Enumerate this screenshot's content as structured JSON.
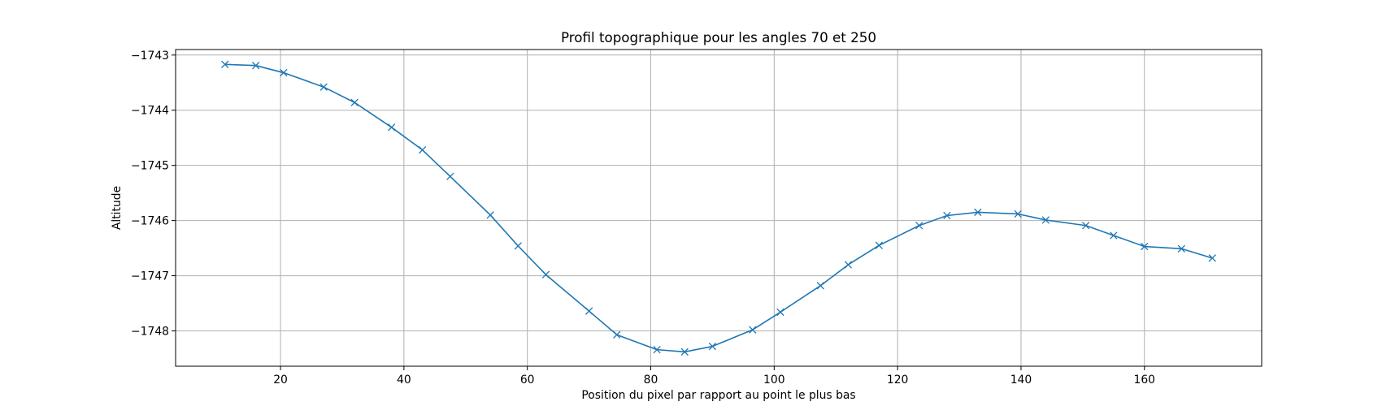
{
  "chart_data": {
    "type": "line",
    "title": "Profil topographique pour les angles 70 et 250",
    "xlabel": "Position du pixel par rapport au point le plus bas",
    "ylabel": "Altitude",
    "xlim": [
      3,
      179
    ],
    "ylim": [
      -1748.64,
      -1742.9
    ],
    "xticks": [
      20,
      40,
      60,
      80,
      100,
      120,
      140,
      160
    ],
    "yticks": [
      -1743,
      -1744,
      -1745,
      -1746,
      -1747,
      -1748
    ],
    "grid": true,
    "legend": "none",
    "series": [
      {
        "color": "#1f77b4",
        "marker": "x",
        "x": [
          11,
          16,
          20.5,
          27,
          32,
          38,
          43,
          47.5,
          54,
          58.5,
          63,
          70,
          74.5,
          81,
          85.5,
          90,
          96.5,
          101,
          107.5,
          112,
          117,
          123.5,
          128,
          133,
          139.5,
          144,
          150.5,
          155,
          160,
          166,
          171
        ],
        "y": [
          -1743.17,
          -1743.19,
          -1743.32,
          -1743.58,
          -1743.86,
          -1744.31,
          -1744.72,
          -1745.2,
          -1745.9,
          -1746.46,
          -1746.98,
          -1747.64,
          -1748.07,
          -1748.34,
          -1748.38,
          -1748.28,
          -1747.98,
          -1747.66,
          -1747.18,
          -1746.8,
          -1746.45,
          -1746.09,
          -1745.91,
          -1745.85,
          -1745.88,
          -1745.99,
          -1746.09,
          -1746.27,
          -1746.47,
          -1746.51,
          -1746.68
        ]
      }
    ]
  }
}
